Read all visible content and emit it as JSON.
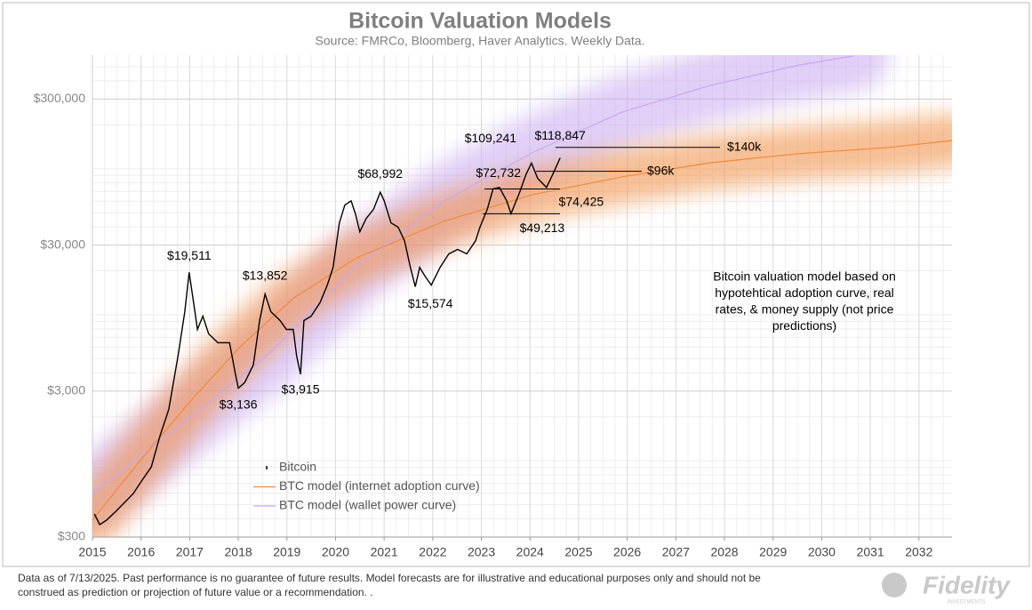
{
  "chart_data": {
    "type": "line",
    "title": "Bitcoin Valuation Models",
    "subtitle": "Source: FMRCo, Bloomberg, Haver Analytics. Weekly Data.",
    "log_y": true,
    "grid": true,
    "legend": "lower left",
    "xlim": [
      2015,
      2032.68
    ],
    "xticks": [
      2015,
      2016,
      2017,
      2018,
      2019,
      2020,
      2021,
      2022,
      2023,
      2024,
      2025,
      2026,
      2027,
      2028,
      2029,
      2030,
      2031,
      2032
    ],
    "ylim": [
      300,
      600000
    ],
    "yticks": [
      {
        "value": 300,
        "label": "$300"
      },
      {
        "value": 3000,
        "label": "$3,000"
      },
      {
        "value": 30000,
        "label": "$30,000"
      },
      {
        "value": 300000,
        "label": "$300,000"
      }
    ],
    "series": [
      {
        "name": "Bitcoin",
        "color": "#000000",
        "x": [
          2015.04,
          2015.15,
          2015.29,
          2015.48,
          2015.66,
          2015.84,
          2016.02,
          2016.21,
          2016.39,
          2016.57,
          2016.76,
          2016.9,
          2016.99,
          2017.08,
          2017.16,
          2017.27,
          2017.39,
          2017.58,
          2017.82,
          2017.94,
          2018.0,
          2018.13,
          2018.31,
          2018.44,
          2018.55,
          2018.67,
          2018.86,
          2018.99,
          2019.13,
          2019.2,
          2019.28,
          2019.35,
          2019.5,
          2019.68,
          2019.83,
          2019.95,
          2020.08,
          2020.19,
          2020.32,
          2020.41,
          2020.5,
          2020.63,
          2020.78,
          2020.92,
          2021.0,
          2021.14,
          2021.29,
          2021.42,
          2021.54,
          2021.64,
          2021.73,
          2021.84,
          2021.97,
          2022.15,
          2022.33,
          2022.51,
          2022.7,
          2022.88,
          2022.97,
          2023.12,
          2023.24,
          2023.37,
          2023.52,
          2023.61,
          2023.79,
          2023.92,
          2024.03,
          2024.16,
          2024.34,
          2024.47,
          2024.62
        ],
        "values": [
          432,
          365,
          392,
          450,
          518,
          596,
          735,
          906,
          1480,
          2250,
          5220,
          10500,
          19511,
          12100,
          7930,
          9790,
          7400,
          6430,
          6430,
          3940,
          3136,
          3430,
          4530,
          9120,
          13852,
          10500,
          9120,
          7930,
          7930,
          5220,
          3915,
          9120,
          9790,
          12100,
          15960,
          21100,
          42600,
          56300,
          60300,
          49000,
          37000,
          45600,
          52500,
          68992,
          60300,
          42600,
          39700,
          32100,
          21100,
          15574,
          21100,
          18400,
          15960,
          21100,
          26100,
          28000,
          26100,
          32100,
          39700,
          52500,
          72732,
          74500,
          60300,
          49213,
          69500,
          91900,
          109241,
          85700,
          74425,
          91900,
          118847
        ]
      },
      {
        "name": "BTC model (internet adoption curve)",
        "color": "#f08a3c",
        "x": [
          2015.0,
          2016.02,
          2017.03,
          2018.03,
          2019.13,
          2020.41,
          2022.24,
          2024.07,
          2025.9,
          2027.72,
          2029.55,
          2031.38,
          2032.68
        ],
        "values": [
          392,
          1040,
          2590,
          6000,
          12960,
          24300,
          43800,
          66600,
          88100,
          110000,
          127000,
          140000,
          156000
        ]
      },
      {
        "name": "BTC model (wallet power curve)",
        "color": "#c8a8f0",
        "x": [
          2015.0,
          2016.76,
          2018.58,
          2020.41,
          2022.24,
          2024.07,
          2025.9,
          2027.72,
          2029.55,
          2030.65
        ],
        "values": [
          596,
          1700,
          5220,
          21100,
          60300,
          130000,
          245000,
          373000,
          514000,
          592000
        ]
      }
    ],
    "annotations": [
      {
        "label": "$19,511",
        "x": 2016.99,
        "value": 19511
      },
      {
        "label": "$13,852",
        "x": 2018.55,
        "value": 13852
      },
      {
        "label": "$3,136",
        "x": 2018.0,
        "value": 3136
      },
      {
        "label": "$3,915",
        "x": 2019.28,
        "value": 3915
      },
      {
        "label": "$68,992",
        "x": 2020.92,
        "value": 68992
      },
      {
        "label": "$15,574",
        "x": 2021.64,
        "value": 15574
      },
      {
        "label": "$72,732",
        "x": 2023.24,
        "value": 72732
      },
      {
        "label": "$49,213",
        "x": 2023.61,
        "value": 49213
      },
      {
        "label": "$74,425",
        "x": 2024.34,
        "value": 74425
      },
      {
        "label": "$109,241",
        "x": 2024.03,
        "value": 109241
      },
      {
        "label": "$118,847",
        "x": 2024.62,
        "value": 118847
      },
      {
        "label": "$140k",
        "x": 2024.62,
        "value": 140000
      },
      {
        "label": "$96k",
        "x": 2024.2,
        "value": 96000
      }
    ],
    "note": [
      "Bitcoin valuation model based on",
      "hypotehtical adoption curve, real",
      "rates, & money supply (not price",
      "predictions)"
    ]
  },
  "footer": [
    "Data as of 7/13/2025. Past performance is no guarantee of future results. Model forecasts are for illustrative and educational purposes only and should not be",
    "construed as prediction or projection of future value or a recommendation. ."
  ],
  "logo": {
    "name": "Fidelity",
    "sub": "INVESTMENTS"
  }
}
